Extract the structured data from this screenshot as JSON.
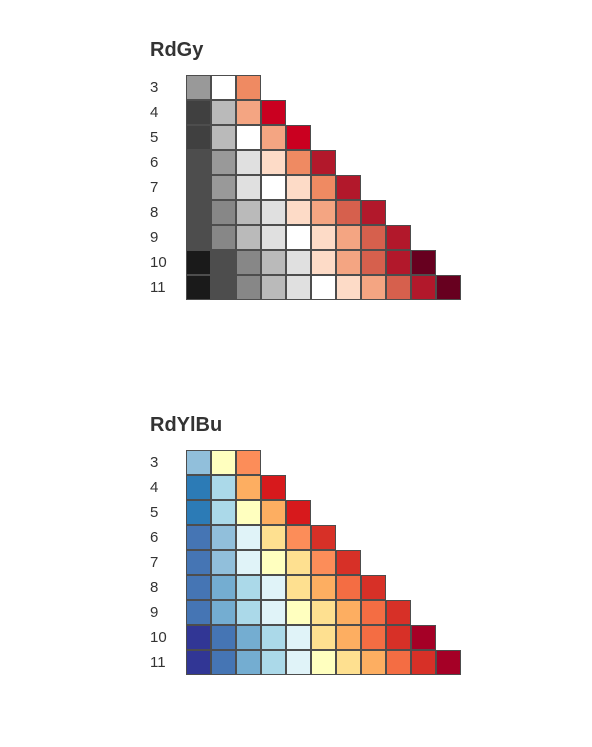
{
  "palettes": [
    {
      "name": "RdGy",
      "rows": [
        {
          "n": "3",
          "colors": [
            "#999999",
            "#ffffff",
            "#ef8a62"
          ]
        },
        {
          "n": "4",
          "colors": [
            "#404040",
            "#bababa",
            "#f4a582",
            "#ca0020"
          ]
        },
        {
          "n": "5",
          "colors": [
            "#404040",
            "#bababa",
            "#ffffff",
            "#f4a582",
            "#ca0020"
          ]
        },
        {
          "n": "6",
          "colors": [
            "#4d4d4d",
            "#999999",
            "#e0e0e0",
            "#fddbc7",
            "#ef8a62",
            "#b2182b"
          ]
        },
        {
          "n": "7",
          "colors": [
            "#4d4d4d",
            "#999999",
            "#e0e0e0",
            "#ffffff",
            "#fddbc7",
            "#ef8a62",
            "#b2182b"
          ]
        },
        {
          "n": "8",
          "colors": [
            "#4d4d4d",
            "#878787",
            "#bababa",
            "#e0e0e0",
            "#fddbc7",
            "#f4a582",
            "#d6604d",
            "#b2182b"
          ]
        },
        {
          "n": "9",
          "colors": [
            "#4d4d4d",
            "#878787",
            "#bababa",
            "#e0e0e0",
            "#ffffff",
            "#fddbc7",
            "#f4a582",
            "#d6604d",
            "#b2182b"
          ]
        },
        {
          "n": "10",
          "colors": [
            "#1a1a1a",
            "#4d4d4d",
            "#878787",
            "#bababa",
            "#e0e0e0",
            "#fddbc7",
            "#f4a582",
            "#d6604d",
            "#b2182b",
            "#67001f"
          ]
        },
        {
          "n": "11",
          "colors": [
            "#1a1a1a",
            "#4d4d4d",
            "#878787",
            "#bababa",
            "#e0e0e0",
            "#ffffff",
            "#fddbc7",
            "#f4a582",
            "#d6604d",
            "#b2182b",
            "#67001f"
          ]
        }
      ]
    },
    {
      "name": "RdYlBu",
      "rows": [
        {
          "n": "3",
          "colors": [
            "#91bfdb",
            "#ffffbf",
            "#fc8d59"
          ]
        },
        {
          "n": "4",
          "colors": [
            "#2c7bb6",
            "#abd9e9",
            "#fdae61",
            "#d7191c"
          ]
        },
        {
          "n": "5",
          "colors": [
            "#2c7bb6",
            "#abd9e9",
            "#ffffbf",
            "#fdae61",
            "#d7191c"
          ]
        },
        {
          "n": "6",
          "colors": [
            "#4575b4",
            "#91bfdb",
            "#e0f3f8",
            "#fee090",
            "#fc8d59",
            "#d73027"
          ]
        },
        {
          "n": "7",
          "colors": [
            "#4575b4",
            "#91bfdb",
            "#e0f3f8",
            "#ffffbf",
            "#fee090",
            "#fc8d59",
            "#d73027"
          ]
        },
        {
          "n": "8",
          "colors": [
            "#4575b4",
            "#74add1",
            "#abd9e9",
            "#e0f3f8",
            "#fee090",
            "#fdae61",
            "#f46d43",
            "#d73027"
          ]
        },
        {
          "n": "9",
          "colors": [
            "#4575b4",
            "#74add1",
            "#abd9e9",
            "#e0f3f8",
            "#ffffbf",
            "#fee090",
            "#fdae61",
            "#f46d43",
            "#d73027"
          ]
        },
        {
          "n": "10",
          "colors": [
            "#313695",
            "#4575b4",
            "#74add1",
            "#abd9e9",
            "#e0f3f8",
            "#fee090",
            "#fdae61",
            "#f46d43",
            "#d73027",
            "#a50026"
          ]
        },
        {
          "n": "11",
          "colors": [
            "#313695",
            "#4575b4",
            "#74add1",
            "#abd9e9",
            "#e0f3f8",
            "#ffffbf",
            "#fee090",
            "#fdae61",
            "#f46d43",
            "#d73027",
            "#a50026"
          ]
        }
      ]
    }
  ]
}
